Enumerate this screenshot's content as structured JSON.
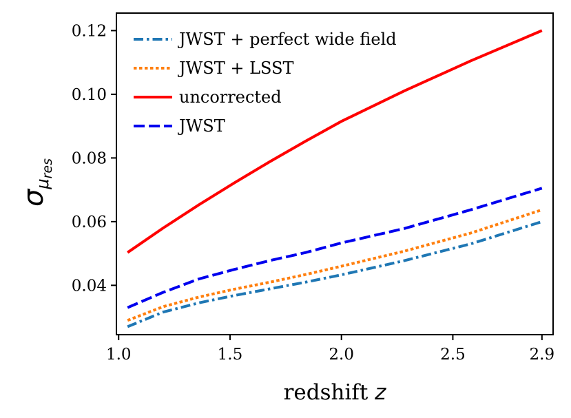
{
  "chart_data": {
    "type": "line",
    "title": "",
    "xlabel": "redshift",
    "xlabel_var": "z",
    "ylabel_symbol": "σ",
    "ylabel_sub_symbol": "μ",
    "ylabel_sub_text": "res",
    "xlim": [
      0.99,
      2.95
    ],
    "ylim": [
      0.0245,
      0.1255
    ],
    "xticks": [
      1.0,
      1.5,
      2.0,
      2.5,
      2.9
    ],
    "xtick_labels": [
      "1.0",
      "1.5",
      "2.0",
      "2.5",
      "2.9"
    ],
    "yticks": [
      0.04,
      0.06,
      0.08,
      0.1,
      0.12
    ],
    "ytick_labels": [
      "0.04",
      "0.06",
      "0.08",
      "0.10",
      "0.12"
    ],
    "grid": false,
    "legend_position": "top-left",
    "x": [
      1.04,
      1.2,
      1.36,
      1.52,
      1.68,
      1.84,
      2.0,
      2.28,
      2.58,
      2.9
    ],
    "series": [
      {
        "name": "JWST + perfect wide field",
        "color": "#1f77b4",
        "style": "dashdot",
        "values": [
          0.027,
          0.0316,
          0.0345,
          0.0368,
          0.0389,
          0.041,
          0.0433,
          0.0477,
          0.053,
          0.06
        ]
      },
      {
        "name": "JWST + LSST",
        "color": "#ff7f0e",
        "style": "dotted",
        "values": [
          0.029,
          0.0333,
          0.0363,
          0.0388,
          0.041,
          0.0434,
          0.046,
          0.0507,
          0.0564,
          0.0637
        ]
      },
      {
        "name": "uncorrected",
        "color": "#ff0000",
        "style": "solid",
        "values": [
          0.0503,
          0.058,
          0.0653,
          0.0722,
          0.0789,
          0.0853,
          0.0915,
          0.101,
          0.1105,
          0.12
        ]
      },
      {
        "name": "JWST",
        "color": "#0000ee",
        "style": "dashed",
        "values": [
          0.033,
          0.0378,
          0.042,
          0.045,
          0.0478,
          0.0503,
          0.0533,
          0.0578,
          0.0637,
          0.0705
        ]
      }
    ]
  }
}
